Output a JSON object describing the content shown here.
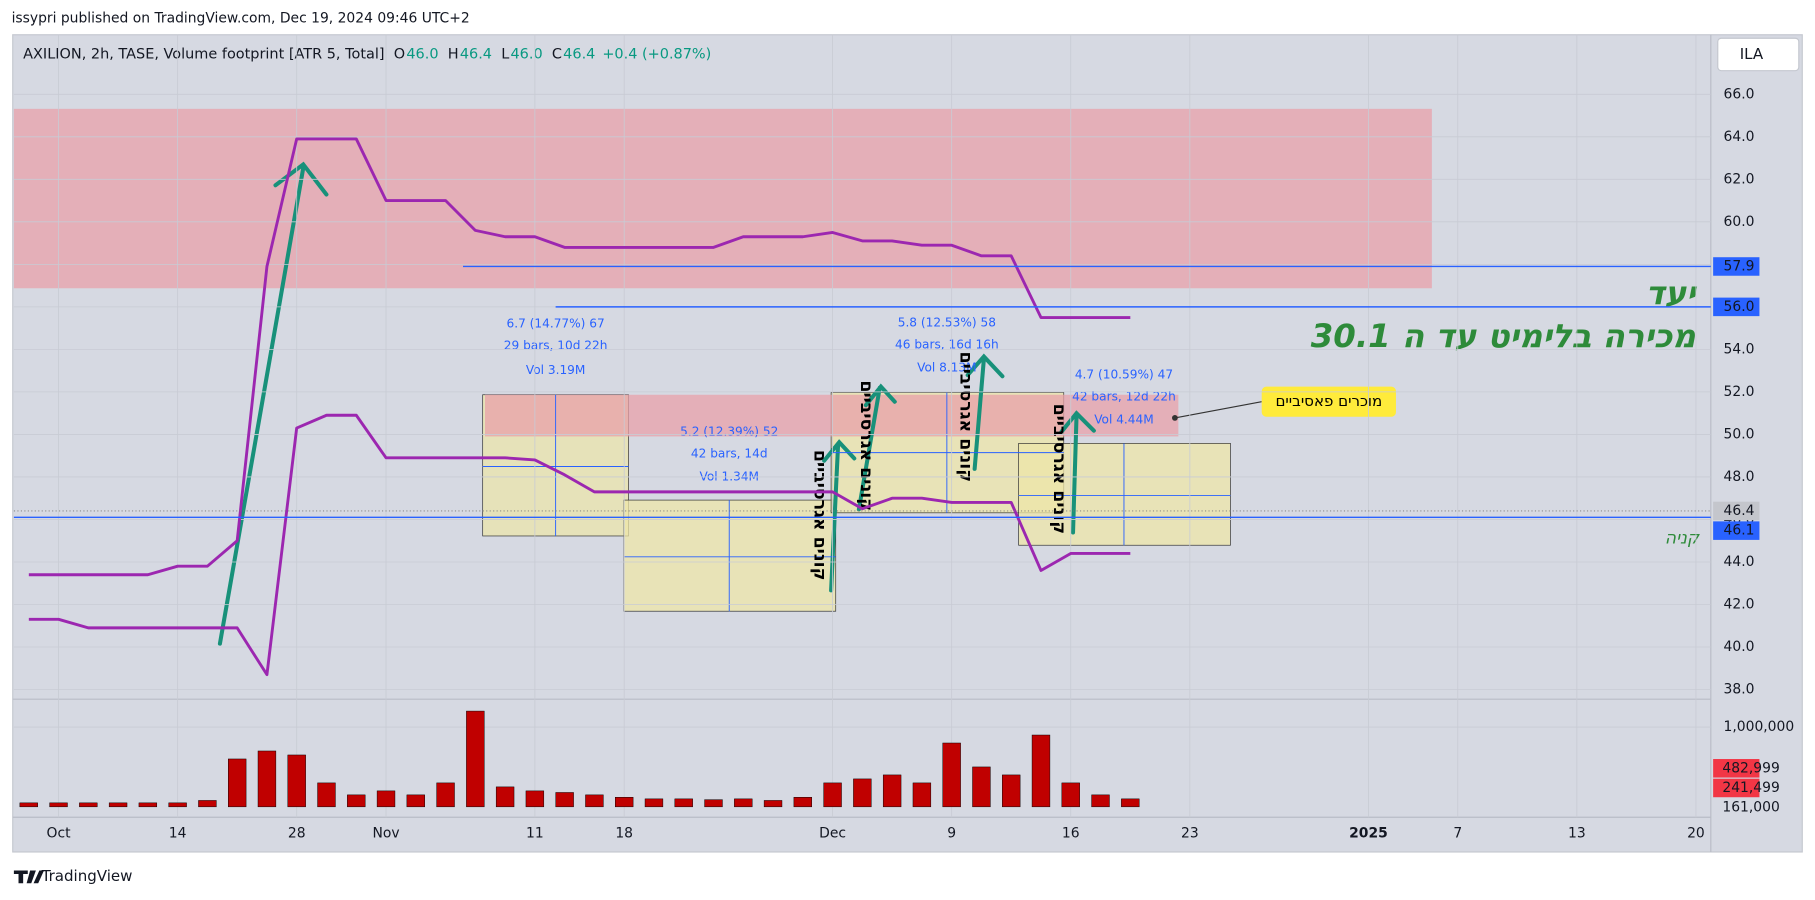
{
  "header": {
    "byline": "issypri published on TradingView.com, Dec 19, 2024 09:46 UTC+2",
    "logo": "TradingView",
    "button": "ILA"
  },
  "legend": {
    "symbol": "AXILION, 2h, TASE, Volume footprint [ATR 5, Total]",
    "items": [
      "O",
      "46.0",
      "H",
      "46.4",
      "L",
      "46.0",
      "C",
      "46.4",
      "+0.4 (+0.87%)"
    ]
  },
  "annotations": {
    "target": "יעד",
    "limit_sell": "מכירה בלימיט עד ה 30.1",
    "passive_sellers": "מוכרים פאסיביים",
    "buy": "קניה",
    "aggressive_buyers": [
      "קונים אגרסיביים",
      "קונים אגרסיביים",
      "קונים אגרסיביים",
      "קונים אגרסיביים"
    ],
    "measures": [
      [
        "6.7 (14.77%) 67",
        "29 bars, 10d 22h",
        "Vol 3.19M"
      ],
      [
        "5.2 (12.39%) 52",
        "42 bars, 14d",
        "Vol 1.34M"
      ],
      [
        "5.8 (12.53%) 58",
        "46 bars, 16d 16h",
        "Vol 8.13M"
      ],
      [
        "4.7 (10.59%) 47",
        "42 bars, 12d 22h",
        "Vol 4.44M"
      ]
    ]
  },
  "chart_data": [
    {
      "type": "line",
      "categories": [
        null,
        "Oct",
        null,
        null,
        null,
        "14",
        null,
        null,
        null,
        "28",
        null,
        null,
        "Nov",
        null,
        null,
        null,
        null,
        "11",
        null,
        null,
        "18",
        null,
        null,
        null,
        null,
        null,
        null,
        "Dec",
        null,
        null,
        null,
        "9",
        null,
        null,
        null,
        "16",
        null,
        null,
        null,
        "23",
        null,
        null,
        null,
        null,
        null,
        "2025",
        null,
        null,
        "7",
        null,
        null,
        null,
        "13",
        null,
        null,
        null,
        "20"
      ],
      "series": [
        {
          "color": "#9c27b0",
          "values": [
            43.4,
            43.4,
            43.4,
            43.4,
            43.4,
            43.8,
            43.8,
            45.0,
            57.9,
            63.9,
            63.9,
            63.9,
            61.0,
            61.0,
            61.0,
            59.6,
            59.3,
            59.3,
            58.8,
            58.8,
            58.8,
            58.8,
            58.8,
            58.8,
            59.3,
            59.3,
            59.3,
            59.5,
            59.1,
            59.1,
            58.9,
            58.9,
            58.4,
            58.4,
            55.5,
            55.5,
            55.5,
            55.5,
            null,
            null,
            null,
            null,
            null,
            null,
            null,
            null,
            null,
            null,
            null,
            null,
            null,
            null,
            null,
            null,
            null,
            null,
            null
          ]
        },
        {
          "color": "#9c27b0",
          "values": [
            41.3,
            41.3,
            40.9,
            40.9,
            40.9,
            40.9,
            40.9,
            40.9,
            38.7,
            50.3,
            50.9,
            50.9,
            48.9,
            48.9,
            48.9,
            48.9,
            48.9,
            48.8,
            48.1,
            47.3,
            47.3,
            47.3,
            47.3,
            47.3,
            47.3,
            47.3,
            47.3,
            47.3,
            46.5,
            47.0,
            47.0,
            46.8,
            46.8,
            46.8,
            43.6,
            44.4,
            44.4,
            44.4,
            null,
            null,
            null,
            null,
            null,
            null,
            null,
            null,
            null,
            null,
            null,
            null,
            null,
            null,
            null,
            null,
            null,
            null,
            null
          ]
        }
      ],
      "ylim": [
        37.6,
        68.8
      ],
      "yticks": [
        {
          "value": 38,
          "label": "38.0"
        },
        {
          "value": 40,
          "label": "40.0"
        },
        {
          "value": 42,
          "label": "42.0"
        },
        {
          "value": 44,
          "label": "44.0"
        },
        {
          "value": 46,
          "label": "46.0"
        },
        {
          "value": 48,
          "label": "48.0"
        },
        {
          "value": 50,
          "label": "50.0"
        },
        {
          "value": 52,
          "label": "52.0"
        },
        {
          "value": 54,
          "label": "54.0"
        },
        {
          "value": 56,
          "label": "56.0"
        },
        {
          "value": 58,
          "label": "58.0"
        },
        {
          "value": 60,
          "label": "60.0"
        },
        {
          "value": 62,
          "label": "62.0"
        },
        {
          "value": 64,
          "label": "64.0"
        },
        {
          "value": 66,
          "label": "66.0"
        }
      ],
      "grid": true,
      "price_labels": [
        {
          "value": 57.9,
          "label": "57.9",
          "color": "#2962ff"
        },
        {
          "value": 56,
          "label": "56.0",
          "color": "#2962ff"
        },
        {
          "value": 46.4,
          "label": "46.4",
          "color": "#c4c6cc"
        },
        {
          "value": 46.1,
          "label": "46.1",
          "color": "#2962ff"
        }
      ]
    },
    {
      "type": "bar",
      "color": "#c00000",
      "values": [
        50000,
        50000,
        50000,
        50000,
        50000,
        50000,
        80000,
        600000,
        700000,
        650000,
        300000,
        150000,
        200000,
        150000,
        300000,
        1200000,
        250000,
        200000,
        180000,
        150000,
        120000,
        100000,
        100000,
        90000,
        100000,
        80000,
        120000,
        300000,
        350000,
        400000,
        300000,
        800000,
        500000,
        400000,
        900000,
        300000,
        150000,
        100000,
        null,
        null,
        null,
        null,
        null,
        null,
        null,
        null,
        null,
        null,
        null,
        null,
        null,
        null,
        null,
        null,
        null,
        null,
        null
      ],
      "ylim": [
        0,
        1320000
      ],
      "yticks": [
        {
          "value": 1000000,
          "label": "1,000,000"
        }
      ],
      "price_labels": [
        {
          "value": 482999,
          "label": "482,999",
          "color": "#f23645"
        },
        {
          "value": 241499,
          "label": "241,499",
          "color": "#f23645"
        },
        {
          "value": 161000,
          "label": "161,000",
          "color": null
        }
      ]
    }
  ]
}
